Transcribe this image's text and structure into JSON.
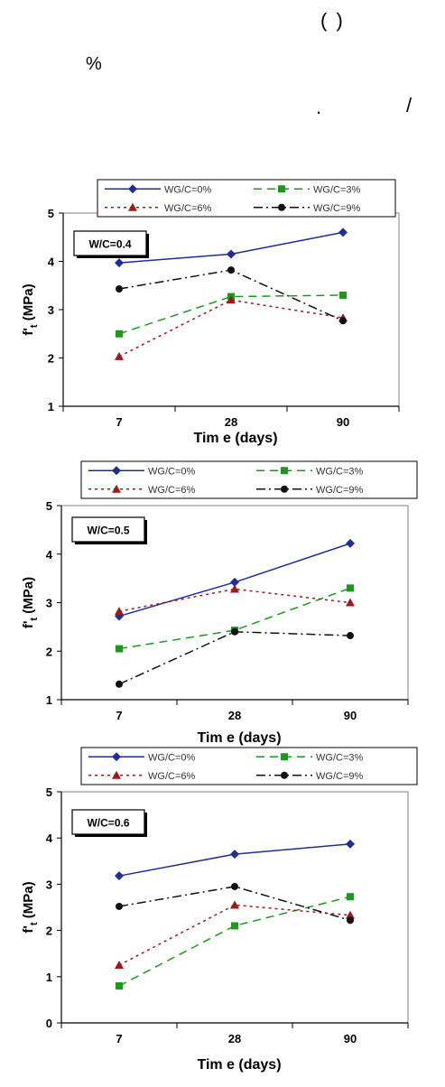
{
  "text_fragments": [
    " ( )",
    "%",
    ".",
    "/"
  ],
  "colors": {
    "series": [
      "#1f2d9a",
      "#1a9a1a",
      "#a01818",
      "#111111"
    ]
  },
  "chart_data": [
    {
      "type": "line",
      "annotation": "W/C=0.4",
      "categories": [
        "7",
        "28",
        "90"
      ],
      "xlabel": "Tim e (days)",
      "ylabel_main": "f'",
      "ylabel_sub": "t",
      "ylabel_rest": " (MPa)",
      "ylim": [
        1,
        5
      ],
      "yticks": [
        1,
        2,
        3,
        4,
        5
      ],
      "legend_position": "top",
      "series": [
        {
          "name": "WG/C=0%",
          "values": [
            3.97,
            4.15,
            4.6
          ]
        },
        {
          "name": "WG/C=3%",
          "values": [
            2.5,
            3.27,
            3.3
          ]
        },
        {
          "name": "WG/C=6%",
          "values": [
            2.03,
            3.2,
            2.83
          ]
        },
        {
          "name": "WG/C=9%",
          "values": [
            3.43,
            3.82,
            2.77
          ]
        }
      ]
    },
    {
      "type": "line",
      "annotation": "W/C=0.5",
      "categories": [
        "7",
        "28",
        "90"
      ],
      "xlabel": "Tim e (days)",
      "ylabel_main": "f'",
      "ylabel_sub": "t",
      "ylabel_rest": " (MPa)",
      "ylim": [
        1,
        5
      ],
      "yticks": [
        1,
        2,
        3,
        4,
        5
      ],
      "legend_position": "top",
      "series": [
        {
          "name": "WG/C=0%",
          "values": [
            2.72,
            3.42,
            4.22
          ]
        },
        {
          "name": "WG/C=3%",
          "values": [
            2.05,
            2.43,
            3.3
          ]
        },
        {
          "name": "WG/C=6%",
          "values": [
            2.82,
            3.28,
            3.0
          ]
        },
        {
          "name": "WG/C=9%",
          "values": [
            1.32,
            2.4,
            2.32
          ]
        }
      ]
    },
    {
      "type": "line",
      "annotation": "W/C=0.6",
      "categories": [
        "7",
        "28",
        "90"
      ],
      "xlabel": "Tim e (days)",
      "ylabel_main": "f'",
      "ylabel_sub": "t",
      "ylabel_rest": " (MPa)",
      "ylim": [
        0,
        5
      ],
      "yticks": [
        0,
        1,
        2,
        3,
        4,
        5
      ],
      "legend_position": "top",
      "series": [
        {
          "name": "WG/C=0%",
          "values": [
            3.18,
            3.65,
            3.87
          ]
        },
        {
          "name": "WG/C=3%",
          "values": [
            0.8,
            2.1,
            2.73
          ]
        },
        {
          "name": "WG/C=6%",
          "values": [
            1.25,
            2.55,
            2.33
          ]
        },
        {
          "name": "WG/C=9%",
          "values": [
            2.52,
            2.95,
            2.22
          ]
        }
      ]
    }
  ]
}
